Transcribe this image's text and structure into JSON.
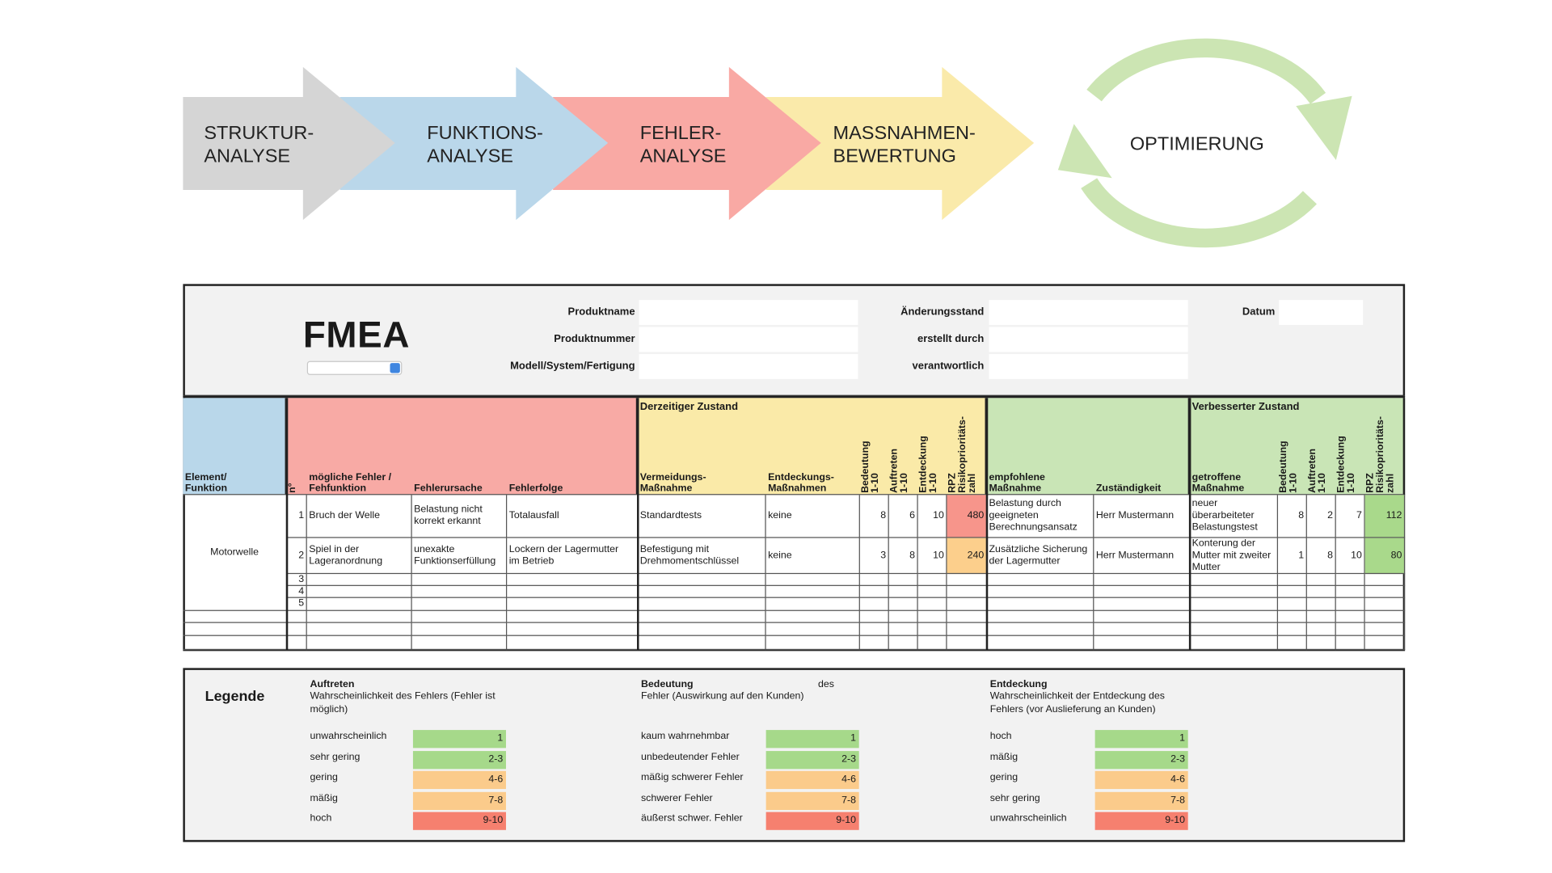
{
  "process": {
    "steps": [
      {
        "label": "STRUKTUR-\nANALYSE",
        "color": "#d5d5d5"
      },
      {
        "label": "FUNKTIONS-\nANALYSE",
        "color": "#bad7ea"
      },
      {
        "label": "FEHLER-\nANALYSE",
        "color": "#f9a9a4"
      },
      {
        "label": "MASSNAHMEN-\nBEWERTUNG",
        "color": "#faeaaa"
      }
    ],
    "cycle": {
      "label": "OPTIMIERUNG",
      "color": "#cce5b3"
    }
  },
  "header": {
    "title": "FMEA",
    "fields": [
      [
        "Produktname",
        "Produktnummer",
        "Modell/System/Fertigung"
      ],
      [
        "Änderungsstand",
        "erstellt durch",
        "verantwortlich"
      ],
      [
        "Datum"
      ]
    ]
  },
  "table": {
    "sections": [
      {
        "color": "#b9d7ea",
        "columns": [
          "Element/\nFunktion"
        ]
      },
      {
        "color": "#f8aaa5",
        "columns": [
          "n°",
          "mögliche Fehler /\nFehfunktion",
          "Fehlerursache",
          "Fehlerfolge"
        ]
      },
      {
        "color": "#faeaa8",
        "title": "Derzeitiger Zustand",
        "columns": [
          "Vermeidungs-\nMaßnahme",
          "Entdeckungs-\nMaßnahmen",
          "Bedeutung\n1-10",
          "Auftreten\n1-10",
          "Entdeckung\n1-10",
          "RPZ\nRisikoprioritäts-\nzahl"
        ]
      },
      {
        "color": "#c9e5b6",
        "columns": [
          "empfohlene\nMaßnahme",
          "Zuständigkeit"
        ]
      },
      {
        "color": "#c9e5b6",
        "title": "Verbesserter Zustand",
        "columns": [
          "getroffene\nMaßnahme",
          "Bedeutung\n1-10",
          "Auftreten\n1-10",
          "Entdeckung\n1-10",
          "RPZ\nRisikoprioritäts-\nzahl"
        ]
      }
    ],
    "element": "Motorwelle",
    "rows": [
      {
        "cells": [
          1,
          "Bruch der Welle",
          "Belastung nicht\nkorrekt erkannt",
          "Totalausfall",
          "Standardtests",
          "keine",
          8,
          6,
          10,
          480,
          "Belastung durch\ngeeigneten\nBerechnungsansatz",
          "Herr Mustermann",
          "neuer\nüberarbeiteter\nBelastungstest",
          8,
          2,
          7,
          112
        ],
        "rpz_colors": [
          "#f7958b",
          "#a9d98b"
        ]
      },
      {
        "cells": [
          2,
          "Spiel in der\nLageranordnung",
          "unexakte\nFunktionserfüllung",
          "Lockern der Lagermutter\nim Betrieb",
          "Befestigung mit\nDrehmomentschlüssel",
          "keine",
          3,
          8,
          10,
          240,
          "Zusätzliche Sicherung\nder Lagermutter",
          "Herr Mustermann",
          "Konterung der\nMutter mit zweiter\nMutter",
          1,
          8,
          10,
          80
        ],
        "rpz_colors": [
          "#fccf8c",
          "#a9d98b"
        ]
      },
      {
        "cells": [
          3,
          null,
          null,
          null,
          null,
          null,
          null,
          null,
          null,
          null,
          null,
          null,
          null,
          null,
          null,
          null,
          null
        ]
      },
      {
        "cells": [
          4,
          null,
          null,
          null,
          null,
          null,
          null,
          null,
          null,
          null,
          null,
          null,
          null,
          null,
          null,
          null,
          null
        ]
      },
      {
        "cells": [
          5,
          null,
          null,
          null,
          null,
          null,
          null,
          null,
          null,
          null,
          null,
          null,
          null,
          null,
          null,
          null,
          null
        ]
      }
    ]
  },
  "legend": {
    "title": "Legende",
    "groups": [
      {
        "title": "Auftreten",
        "description": "Wahrscheinlichkeit des Fehlers (Fehler ist\nmöglich)",
        "items": [
          {
            "label": "unwahrscheinlich",
            "rating": 1,
            "color": "#a6d98a"
          },
          {
            "label": "sehr gering",
            "rating": "2-3",
            "color": "#a6d98a"
          },
          {
            "label": "gering",
            "rating": "4-6",
            "color": "#fbcb8b"
          },
          {
            "label": "mäßig",
            "rating": "7-8",
            "color": "#fbcb8b"
          },
          {
            "label": "hoch",
            "rating": "9-10",
            "color": "#f6806f"
          }
        ]
      },
      {
        "title": "Bedeutung",
        "note": "des",
        "description": "Fehler (Auswirkung auf den Kunden)",
        "items": [
          {
            "label": "kaum wahrnehmbar",
            "rating": 1,
            "color": "#a6d98a"
          },
          {
            "label": "unbedeutender Fehler",
            "rating": "2-3",
            "color": "#a6d98a"
          },
          {
            "label": "mäßig schwerer Fehler",
            "rating": "4-6",
            "color": "#fbcb8b"
          },
          {
            "label": "schwerer Fehler",
            "rating": "7-8",
            "color": "#fbcb8b"
          },
          {
            "label": "äußerst schwer. Fehler",
            "rating": "9-10",
            "color": "#f6806f"
          }
        ]
      },
      {
        "title": "Entdeckung",
        "description": "Wahrscheinlichkeit der Entdeckung des\nFehlers (vor Auslieferung an Kunden)",
        "items": [
          {
            "label": "hoch",
            "rating": 1,
            "color": "#a6d98a"
          },
          {
            "label": "mäßig",
            "rating": "2-3",
            "color": "#a6d98a"
          },
          {
            "label": "gering",
            "rating": "4-6",
            "color": "#fbcb8b"
          },
          {
            "label": "sehr gering",
            "rating": "7-8",
            "color": "#fbcb8b"
          },
          {
            "label": "unwahrscheinlich",
            "rating": "9-10",
            "color": "#f6806f"
          }
        ]
      }
    ]
  }
}
